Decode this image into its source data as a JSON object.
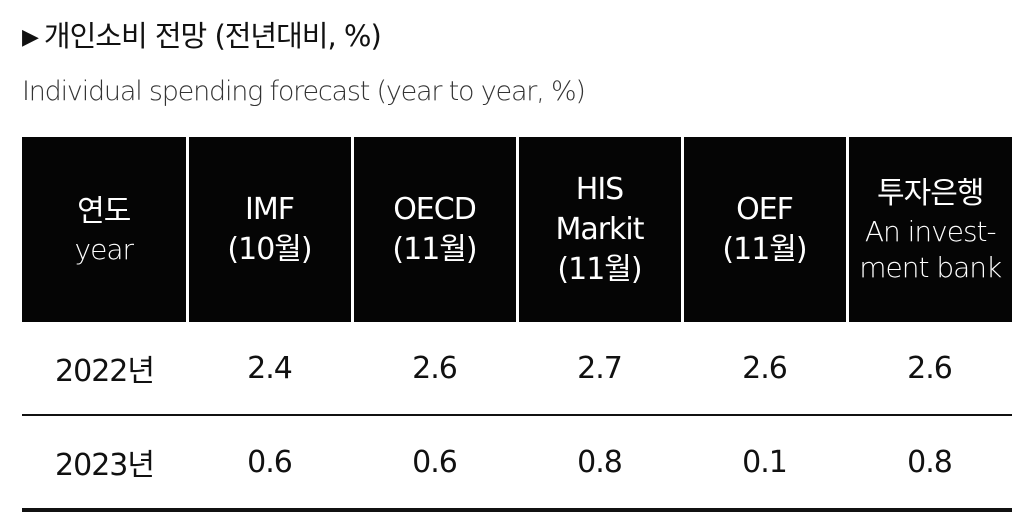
{
  "header": {
    "marker": "▶",
    "title_kr": "개인소비 전망 (전년대비, %)",
    "title_en": "Individual spending forecast (year to year, %)"
  },
  "table": {
    "columns": [
      {
        "lines": [
          "연도"
        ],
        "sub": [
          "year"
        ]
      },
      {
        "lines": [
          "IMF",
          "(10월)"
        ],
        "sub": []
      },
      {
        "lines": [
          "OECD",
          "(11월)"
        ],
        "sub": []
      },
      {
        "lines": [
          "HIS",
          "Markit",
          "(11월)"
        ],
        "sub": []
      },
      {
        "lines": [
          "OEF",
          "(11월)"
        ],
        "sub": []
      },
      {
        "lines": [
          "투자은행"
        ],
        "sub": [
          "An invest-",
          "ment bank"
        ]
      }
    ],
    "rows": [
      {
        "year": "2022년",
        "values": [
          "2.4",
          "2.6",
          "2.7",
          "2.6",
          "2.6"
        ]
      },
      {
        "year": "2023년",
        "values": [
          "0.6",
          "0.6",
          "0.8",
          "0.1",
          "0.8"
        ]
      }
    ]
  }
}
